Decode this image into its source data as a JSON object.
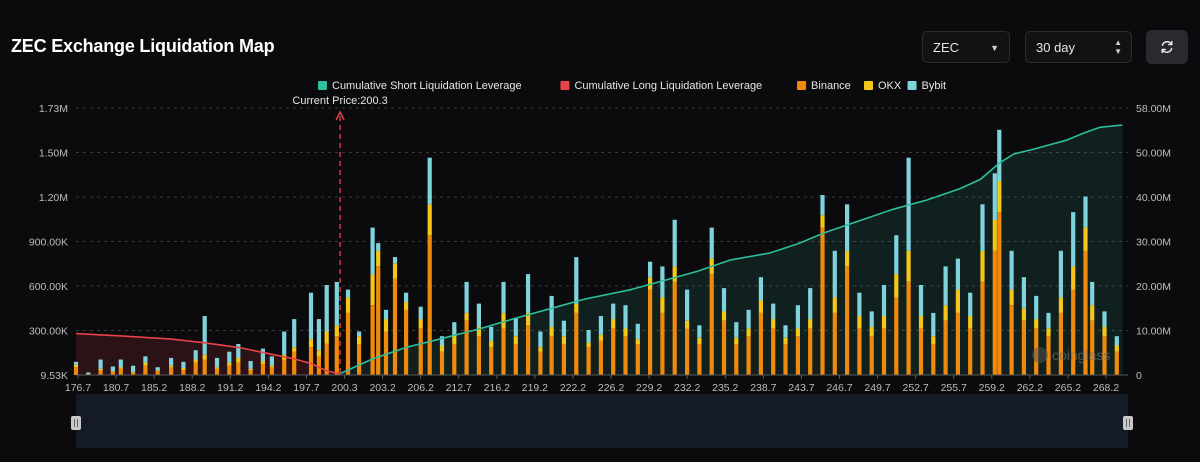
{
  "header": {
    "title": "ZEC Exchange Liquidation Map",
    "coin_select": "ZEC",
    "range_select": "30 day"
  },
  "icons": {
    "refresh": "refresh-icon",
    "dropdown": "chevron-down-icon",
    "stepper": "updown-icon"
  },
  "colors": {
    "short": "#2ebd9f",
    "long": "#e8424b",
    "binance": "#f08a0c",
    "okx": "#f5c61a",
    "bybit": "#7fd3dc"
  },
  "chart_data": {
    "type": "bar",
    "title": "ZEC Exchange Liquidation Map",
    "legend": [
      {
        "name": "Cumulative Short Liquidation Leverage",
        "color": "#2ebd9f"
      },
      {
        "name": "Cumulative Long Liquidation Leverage",
        "color": "#e8424b"
      },
      {
        "name": "Binance",
        "color": "#f08a0c"
      },
      {
        "name": "OKX",
        "color": "#f5c61a"
      },
      {
        "name": "Bybit",
        "color": "#7fd3dc"
      }
    ],
    "current_price_label": "Current Price:200.3",
    "current_price": 200.3,
    "xlim": [
      176.7,
      270.7
    ],
    "x_ticks": [
      "176.7",
      "180.7",
      "185.2",
      "188.2",
      "191.2",
      "194.2",
      "197.7",
      "200.3",
      "203.2",
      "206.2",
      "212.7",
      "216.2",
      "219.2",
      "222.2",
      "226.2",
      "229.2",
      "232.2",
      "235.2",
      "238.7",
      "243.7",
      "246.7",
      "249.7",
      "252.7",
      "255.7",
      "259.2",
      "262.2",
      "265.2",
      "268.2"
    ],
    "left_axis": {
      "ticks": [
        "9.53K",
        "300.00K",
        "600.00K",
        "900.00K",
        "1.20M",
        "1.50M",
        "1.73M"
      ],
      "range": [
        9530,
        1730000
      ]
    },
    "right_axis": {
      "ticks": [
        "0",
        "10.00M",
        "20.00M",
        "30.00M",
        "40.00M",
        "50.00M",
        "58.00M"
      ],
      "range": [
        0,
        58000000
      ]
    },
    "short_cumulative": {
      "x": [
        200.3,
        203.2,
        206.2,
        209.5,
        212.7,
        216.2,
        219.2,
        222.2,
        226.2,
        229.2,
        232.2,
        235.2,
        238.7,
        241.2,
        243.7,
        246.7,
        249.7,
        252.7,
        255.7,
        257.5,
        259.2,
        260.5,
        262.2,
        265.2,
        266.7,
        268.2,
        270.2
      ],
      "y": [
        0.3,
        3.5,
        6.0,
        8.0,
        10.0,
        12.5,
        14.5,
        16.5,
        18.5,
        20.5,
        22.5,
        25.0,
        26.5,
        28.5,
        31.0,
        33.5,
        36.0,
        38.0,
        40.5,
        42.5,
        46.0,
        48.0,
        49.0,
        51.0,
        52.5,
        53.8,
        54.3
      ]
    },
    "long_cumulative": {
      "x": [
        176.7,
        180.7,
        185.2,
        188.2,
        191.2,
        194.2,
        196.2,
        197.7,
        199.0,
        200.3
      ],
      "y": [
        9.0,
        8.5,
        7.8,
        7.0,
        6.0,
        4.5,
        3.5,
        2.5,
        1.0,
        0.2
      ]
    },
    "bars_note": "Per-price-level liquidation volume (USD) stacked Binance/OKX/Bybit, approximated from the image.",
    "bars": [
      [
        176.7,
        50000,
        15000,
        20000
      ],
      [
        177.8,
        5000,
        2000,
        10000
      ],
      [
        178.9,
        30000,
        10000,
        60000
      ],
      [
        180.0,
        20000,
        5000,
        30000
      ],
      [
        180.7,
        40000,
        10000,
        50000
      ],
      [
        181.8,
        15000,
        5000,
        40000
      ],
      [
        182.9,
        60000,
        20000,
        40000
      ],
      [
        184.0,
        25000,
        5000,
        20000
      ],
      [
        185.2,
        50000,
        10000,
        50000
      ],
      [
        186.3,
        30000,
        15000,
        40000
      ],
      [
        187.4,
        80000,
        20000,
        60000
      ],
      [
        188.2,
        100000,
        30000,
        250000
      ],
      [
        189.3,
        40000,
        10000,
        60000
      ],
      [
        190.4,
        60000,
        20000,
        70000
      ],
      [
        191.2,
        80000,
        30000,
        90000
      ],
      [
        192.3,
        30000,
        10000,
        50000
      ],
      [
        193.4,
        70000,
        20000,
        80000
      ],
      [
        194.2,
        50000,
        10000,
        60000
      ],
      [
        195.3,
        100000,
        30000,
        150000
      ],
      [
        196.2,
        150000,
        30000,
        180000
      ],
      [
        197.7,
        180000,
        50000,
        300000
      ],
      [
        198.4,
        120000,
        40000,
        200000
      ],
      [
        199.1,
        200000,
        80000,
        300000
      ],
      [
        200.0,
        250000,
        70000,
        280000
      ],
      [
        201.0,
        400000,
        100000,
        50000
      ],
      [
        202.0,
        200000,
        50000,
        30000
      ],
      [
        203.2,
        450000,
        200000,
        300000
      ],
      [
        203.7,
        700000,
        100000,
        50000
      ],
      [
        204.4,
        280000,
        80000,
        60000
      ],
      [
        205.2,
        620000,
        100000,
        40000
      ],
      [
        206.2,
        420000,
        50000,
        60000
      ],
      [
        207.5,
        300000,
        60000,
        80000
      ],
      [
        208.3,
        900000,
        200000,
        300000
      ],
      [
        209.4,
        150000,
        40000,
        60000
      ],
      [
        210.5,
        200000,
        60000,
        80000
      ],
      [
        211.6,
        350000,
        50000,
        200000
      ],
      [
        212.7,
        250000,
        60000,
        150000
      ],
      [
        213.8,
        180000,
        40000,
        90000
      ],
      [
        214.9,
        300000,
        100000,
        200000
      ],
      [
        216.0,
        200000,
        50000,
        120000
      ],
      [
        217.1,
        320000,
        80000,
        250000
      ],
      [
        218.2,
        150000,
        30000,
        100000
      ],
      [
        219.2,
        250000,
        60000,
        200000
      ],
      [
        220.3,
        200000,
        50000,
        100000
      ],
      [
        221.4,
        400000,
        60000,
        300000
      ],
      [
        222.5,
        180000,
        30000,
        80000
      ],
      [
        223.6,
        220000,
        40000,
        120000
      ],
      [
        224.7,
        300000,
        60000,
        100000
      ],
      [
        225.8,
        250000,
        50000,
        150000
      ],
      [
        226.9,
        200000,
        30000,
        100000
      ],
      [
        228.0,
        550000,
        80000,
        100000
      ],
      [
        229.1,
        400000,
        100000,
        200000
      ],
      [
        230.2,
        600000,
        100000,
        300000
      ],
      [
        231.3,
        300000,
        50000,
        200000
      ],
      [
        232.4,
        200000,
        40000,
        80000
      ],
      [
        233.5,
        650000,
        100000,
        200000
      ],
      [
        234.6,
        350000,
        60000,
        150000
      ],
      [
        235.7,
        200000,
        40000,
        100000
      ],
      [
        236.8,
        250000,
        50000,
        120000
      ],
      [
        237.9,
        400000,
        80000,
        150000
      ],
      [
        239.0,
        300000,
        60000,
        100000
      ],
      [
        240.1,
        200000,
        40000,
        80000
      ],
      [
        241.2,
        250000,
        50000,
        150000
      ],
      [
        242.3,
        300000,
        60000,
        200000
      ],
      [
        243.4,
        950000,
        80000,
        130000
      ],
      [
        244.5,
        400000,
        100000,
        300000
      ],
      [
        245.6,
        700000,
        100000,
        300000
      ],
      [
        246.7,
        300000,
        80000,
        150000
      ],
      [
        247.8,
        250000,
        60000,
        100000
      ],
      [
        248.9,
        300000,
        80000,
        200000
      ],
      [
        250.0,
        500000,
        150000,
        250000
      ],
      [
        251.1,
        600000,
        200000,
        600000
      ],
      [
        252.2,
        300000,
        80000,
        200000
      ],
      [
        253.3,
        200000,
        50000,
        150000
      ],
      [
        254.4,
        350000,
        100000,
        250000
      ],
      [
        255.5,
        400000,
        150000,
        200000
      ],
      [
        256.6,
        300000,
        80000,
        150000
      ],
      [
        257.7,
        600000,
        200000,
        300000
      ],
      [
        258.8,
        800000,
        200000,
        300000
      ],
      [
        259.2,
        1050000,
        200000,
        330000
      ],
      [
        260.3,
        450000,
        100000,
        250000
      ],
      [
        261.4,
        350000,
        80000,
        200000
      ],
      [
        262.5,
        300000,
        60000,
        150000
      ],
      [
        263.6,
        250000,
        50000,
        100000
      ],
      [
        264.7,
        400000,
        100000,
        300000
      ],
      [
        265.8,
        550000,
        150000,
        350000
      ],
      [
        266.9,
        800000,
        150000,
        200000
      ],
      [
        267.5,
        350000,
        100000,
        150000
      ],
      [
        268.6,
        250000,
        60000,
        100000
      ],
      [
        269.7,
        150000,
        40000,
        60000
      ]
    ]
  }
}
